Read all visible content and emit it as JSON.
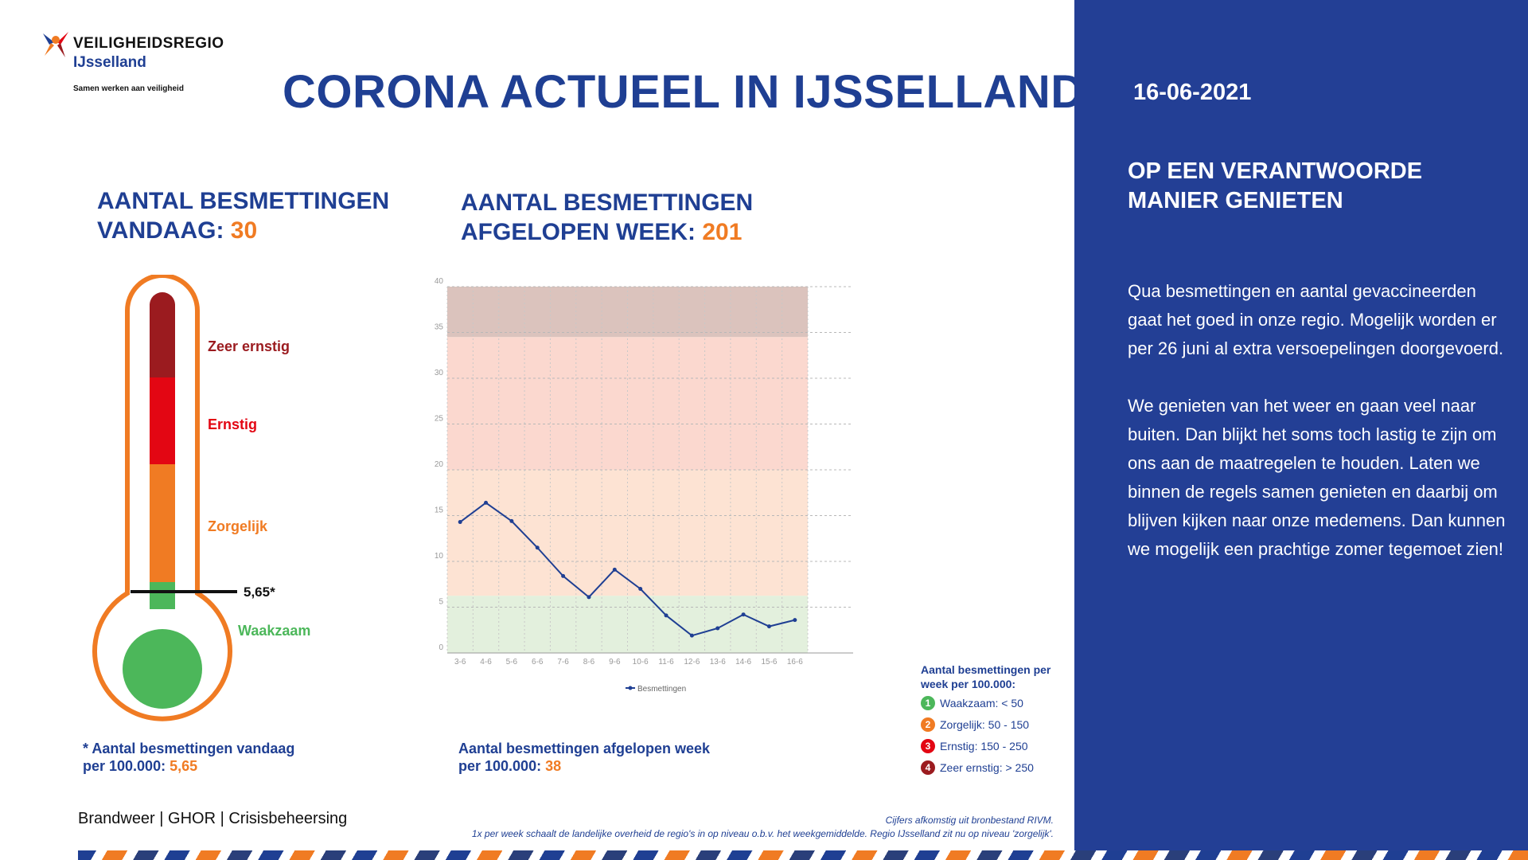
{
  "logo": {
    "name": "VEILIGHEIDSREGIO",
    "region": "IJsselland",
    "tagline": "Samen werken aan veiligheid"
  },
  "title": "CORONA ACTUEEL IN IJSSELLAND",
  "today": {
    "title_line1": "AANTAL BESMETTINGEN",
    "title_line2": "VANDAAG:",
    "value": "30",
    "footnote_line1": "* Aantal besmettingen vandaag",
    "footnote_line2": "per 100.000:",
    "footnote_value": "5,65"
  },
  "week": {
    "title_line1": "AANTAL BESMETTINGEN",
    "title_line2": "AFGELOPEN WEEK:",
    "value": "201",
    "footnote_line1": "Aantal besmettingen afgelopen week",
    "footnote_line2": "per 100.000:",
    "footnote_value": "38"
  },
  "thermometer": {
    "levels": [
      {
        "label": "Zeer ernstig",
        "color": "#9b1b1f"
      },
      {
        "label": "Ernstig",
        "color": "#e30613"
      },
      {
        "label": "Zorgelijk",
        "color": "#f07b23"
      },
      {
        "label": "Waakzaam",
        "color": "#4cb75a"
      }
    ],
    "marker_value": 5.65,
    "marker_label": "5,65*",
    "outline_color": "#f07b23"
  },
  "chart_data": {
    "type": "line",
    "categories": [
      "3-6",
      "4-6",
      "5-6",
      "6-6",
      "7-6",
      "8-6",
      "9-6",
      "10-6",
      "11-6",
      "12-6",
      "13-6",
      "14-6",
      "15-6",
      "16-6"
    ],
    "series": [
      {
        "name": "Besmettingen",
        "values": [
          14.3,
          16.4,
          14.4,
          11.5,
          8.4,
          6.1,
          9.1,
          7.0,
          4.1,
          1.9,
          2.7,
          4.2,
          2.9,
          3.6
        ],
        "color": "#1f3f93"
      }
    ],
    "ylim": [
      0,
      40
    ],
    "yticks": [
      "0",
      "5",
      "10",
      "15",
      "20",
      "25",
      "30",
      "35",
      "40"
    ],
    "bands": [
      {
        "from": 0,
        "to": 6.25,
        "color": "#e3f0dd"
      },
      {
        "from": 6.25,
        "to": 20,
        "color": "#fde3d3"
      },
      {
        "from": 20,
        "to": 34.5,
        "color": "#fbd8cf"
      },
      {
        "from": 34.5,
        "to": 40,
        "color": "#dbc3bd"
      }
    ],
    "legend": "bottom"
  },
  "legend": {
    "title_line1": "Aantal besmettingen per",
    "title_line2": "week per 100.000:",
    "items": [
      {
        "num": "1",
        "label": "Waakzaam: < 50",
        "color": "#4cb75a"
      },
      {
        "num": "2",
        "label": "Zorgelijk: 50 - 150",
        "color": "#f07b23"
      },
      {
        "num": "3",
        "label": "Ernstig: 150 - 250",
        "color": "#e30613"
      },
      {
        "num": "4",
        "label": "Zeer ernstig: > 250",
        "color": "#9b1b1f"
      }
    ]
  },
  "footer": {
    "services": "Brandweer | GHOR | Crisisbeheersing",
    "source_line1": "Cijfers afkomstig uit bronbestand RIVM.",
    "source_line2": "1x per week schaalt de landelijke overheid de regio's in op niveau o.b.v. het weekgemiddelde. Regio IJsselland zit nu op niveau 'zorgelijk'."
  },
  "panel": {
    "date": "16-06-2021",
    "title_line1": "OP EEN VERANTWOORDE",
    "title_line2": "MANIER GENIETEN",
    "paragraph1": "Qua besmettingen en aantal gevaccineerden gaat het goed in onze regio. Mogelijk worden er per 26 juni al extra versoepelingen doorgevoerd.",
    "paragraph2": "We genieten van het weer en gaan veel naar buiten. Dan blijkt het soms toch lastig te zijn om ons aan de maatregelen te houden. Laten we binnen de regels samen genieten en daarbij om blijven kijken naar onze medemens. Dan kunnen we mogelijk een prachtige zomer tegemoet zien!"
  }
}
